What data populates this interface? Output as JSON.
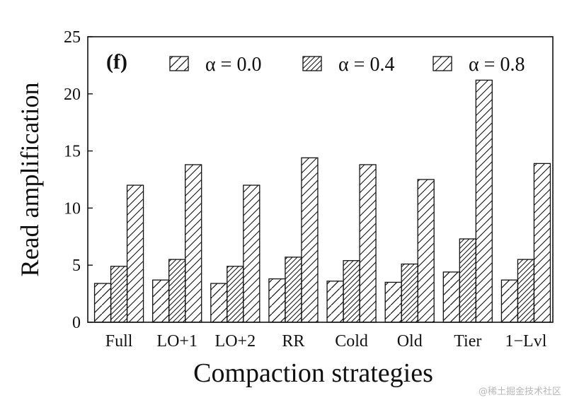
{
  "chart_data": {
    "type": "bar",
    "panel_label": "(f)",
    "xlabel": "Compaction strategies",
    "ylabel": "Read amplification",
    "ylim": [
      0,
      25
    ],
    "yticks": [
      "0",
      "5",
      "10",
      "15",
      "20",
      "25"
    ],
    "categories": [
      "Full",
      "LO+1",
      "LO+2",
      "RR",
      "Cold",
      "Old",
      "Tier",
      "1−Lvl"
    ],
    "series": [
      {
        "name": "α = 0.0",
        "pattern": "backslash-sparse",
        "values": [
          3.4,
          3.7,
          3.4,
          3.8,
          3.6,
          3.5,
          4.4,
          3.7
        ]
      },
      {
        "name": "α = 0.4",
        "pattern": "slash-dense",
        "values": [
          4.9,
          5.5,
          4.9,
          5.7,
          5.4,
          5.1,
          7.3,
          5.5
        ]
      },
      {
        "name": "α = 0.8",
        "pattern": "slash-sparse",
        "values": [
          12.0,
          13.8,
          12.0,
          14.4,
          13.8,
          12.5,
          21.2,
          13.9
        ]
      }
    ],
    "grid": false,
    "legend_position": "top"
  },
  "watermark": "@稀土掘金技术社区",
  "colors": {
    "ink": "#111111",
    "background": "#ffffff"
  }
}
